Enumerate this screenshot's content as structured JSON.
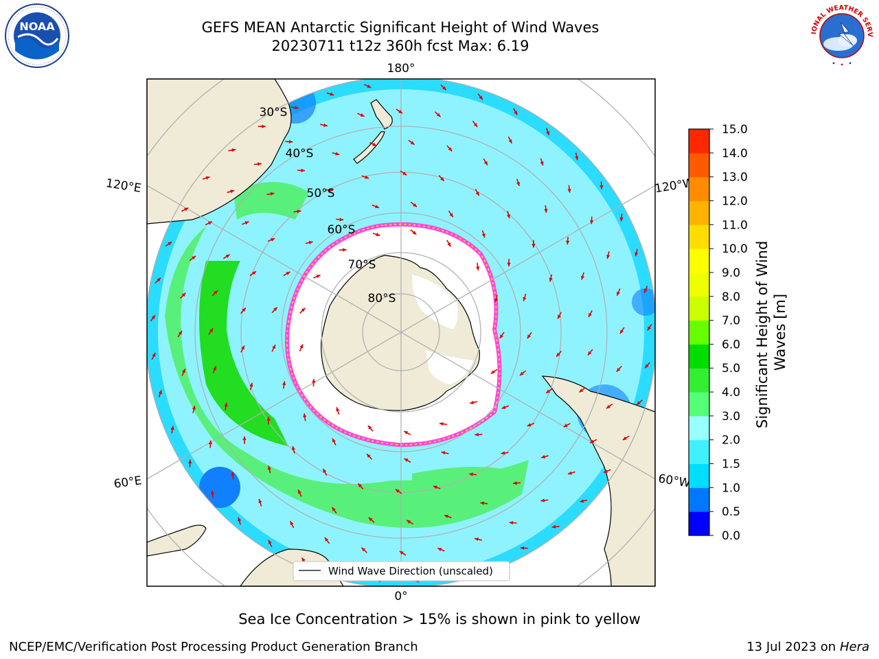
{
  "header": {
    "title_line1": "GEFS MEAN Antarctic Significant Height of Wind Waves",
    "title_line2": "20230711 t12z 360h fcst   Max: 6.19"
  },
  "map": {
    "projection": "south-polar-stereographic",
    "lon_labels": {
      "top": "180°",
      "bottom": "0°",
      "upper_left": "120°E",
      "upper_right": "120°W",
      "lower_left": "60°E",
      "lower_right": "60°W"
    },
    "lat_labels": [
      "30°S",
      "40°S",
      "50°S",
      "60°S",
      "70°S",
      "80°S"
    ],
    "legend_label": "Wind Wave Direction (unscaled)",
    "colors": {
      "land": "#efebd7",
      "coast": "#000000",
      "grid": "#b0b0b0",
      "arrow": "#e00000"
    }
  },
  "colorbar": {
    "label": "Significant Height of Wind Waves [m]",
    "ticks": [
      "0.0",
      "0.5",
      "1.0",
      "1.5",
      "2.0",
      "3.0",
      "4.0",
      "5.0",
      "6.0",
      "7.0",
      "8.0",
      "9.0",
      "10.0",
      "11.0",
      "12.0",
      "13.0",
      "14.0",
      "15.0"
    ],
    "colors": [
      "#0000ff",
      "#0077ff",
      "#00ddff",
      "#40f0ff",
      "#99ffff",
      "#55ff77",
      "#33ee33",
      "#00dd00",
      "#66ff00",
      "#ccff00",
      "#eeff00",
      "#ffff00",
      "#ffdd00",
      "#ffb300",
      "#ff8c00",
      "#ff5a00",
      "#ff2800"
    ]
  },
  "logos": {
    "left": "NOAA",
    "right": "NATIONAL WEATHER SERVICE"
  },
  "note": "Sea Ice Concentration > 15% is shown in pink to yellow",
  "footer": {
    "left": "NCEP/EMC/Verification Post Processing Product Generation Branch",
    "right_prefix": "13 Jul 2023 on ",
    "right_host": "Hera"
  }
}
